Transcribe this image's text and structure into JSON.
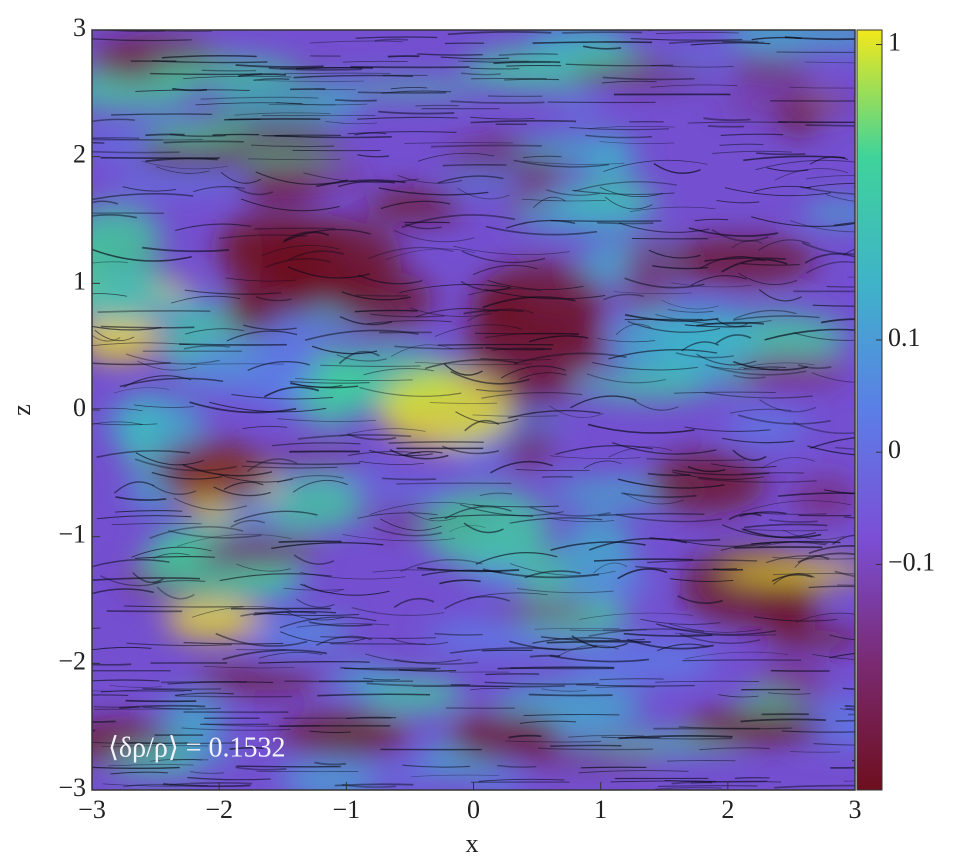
{
  "chart_data": {
    "type": "heatmap",
    "xlabel": "x",
    "ylabel": "z",
    "annotation": "⟨δρ/ρ⟩ = 0.1532",
    "xlim": [
      -3,
      3
    ],
    "ylim": [
      -3,
      3
    ],
    "xticks": [
      {
        "value": -3,
        "label": "−3"
      },
      {
        "value": -2,
        "label": "−2"
      },
      {
        "value": -1,
        "label": "−1"
      },
      0,
      1,
      2,
      3
    ],
    "yticks": [
      {
        "value": -3,
        "label": "−3"
      },
      {
        "value": -2,
        "label": "−2"
      },
      {
        "value": -1,
        "label": "−1"
      },
      0,
      1,
      2,
      3
    ],
    "colorbar": {
      "scale": "symlog",
      "linthresh": 0.1,
      "linscale": 0.38,
      "lim": [
        -0.58,
        1.12
      ],
      "ticks": [
        {
          "value": -0.1,
          "label": "−0.1"
        },
        0,
        0.1,
        1
      ],
      "colormap": [
        "#6e0f1e",
        "#7a2a72",
        "#7b4fd6",
        "#5b7ee6",
        "#3fb3c9",
        "#3fd39a",
        "#f2e81a"
      ]
    }
  }
}
